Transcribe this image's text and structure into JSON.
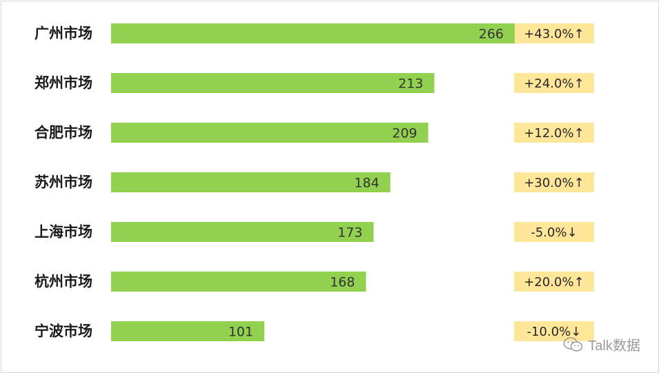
{
  "chart_data": {
    "type": "bar",
    "orientation": "horizontal",
    "categories": [
      "广州市场",
      "郑州市场",
      "合肥市场",
      "苏州市场",
      "上海市场",
      "杭州市场",
      "宁波市场"
    ],
    "values": [
      266,
      213,
      209,
      184,
      173,
      168,
      101
    ],
    "changes": [
      "+43.0%↑",
      "+24.0%↑",
      "+12.0%↑",
      "+30.0%↑",
      "-5.0%↓",
      "+20.0%↑",
      "-10.0%↓"
    ],
    "xlim": [
      0,
      266
    ],
    "grid": false,
    "title": "",
    "xlabel": "",
    "ylabel": ""
  },
  "colors": {
    "bar": "#92d050",
    "change_box": "#ffe699"
  },
  "watermark": {
    "icon": "wechat-icon",
    "text": "Talk数据"
  }
}
